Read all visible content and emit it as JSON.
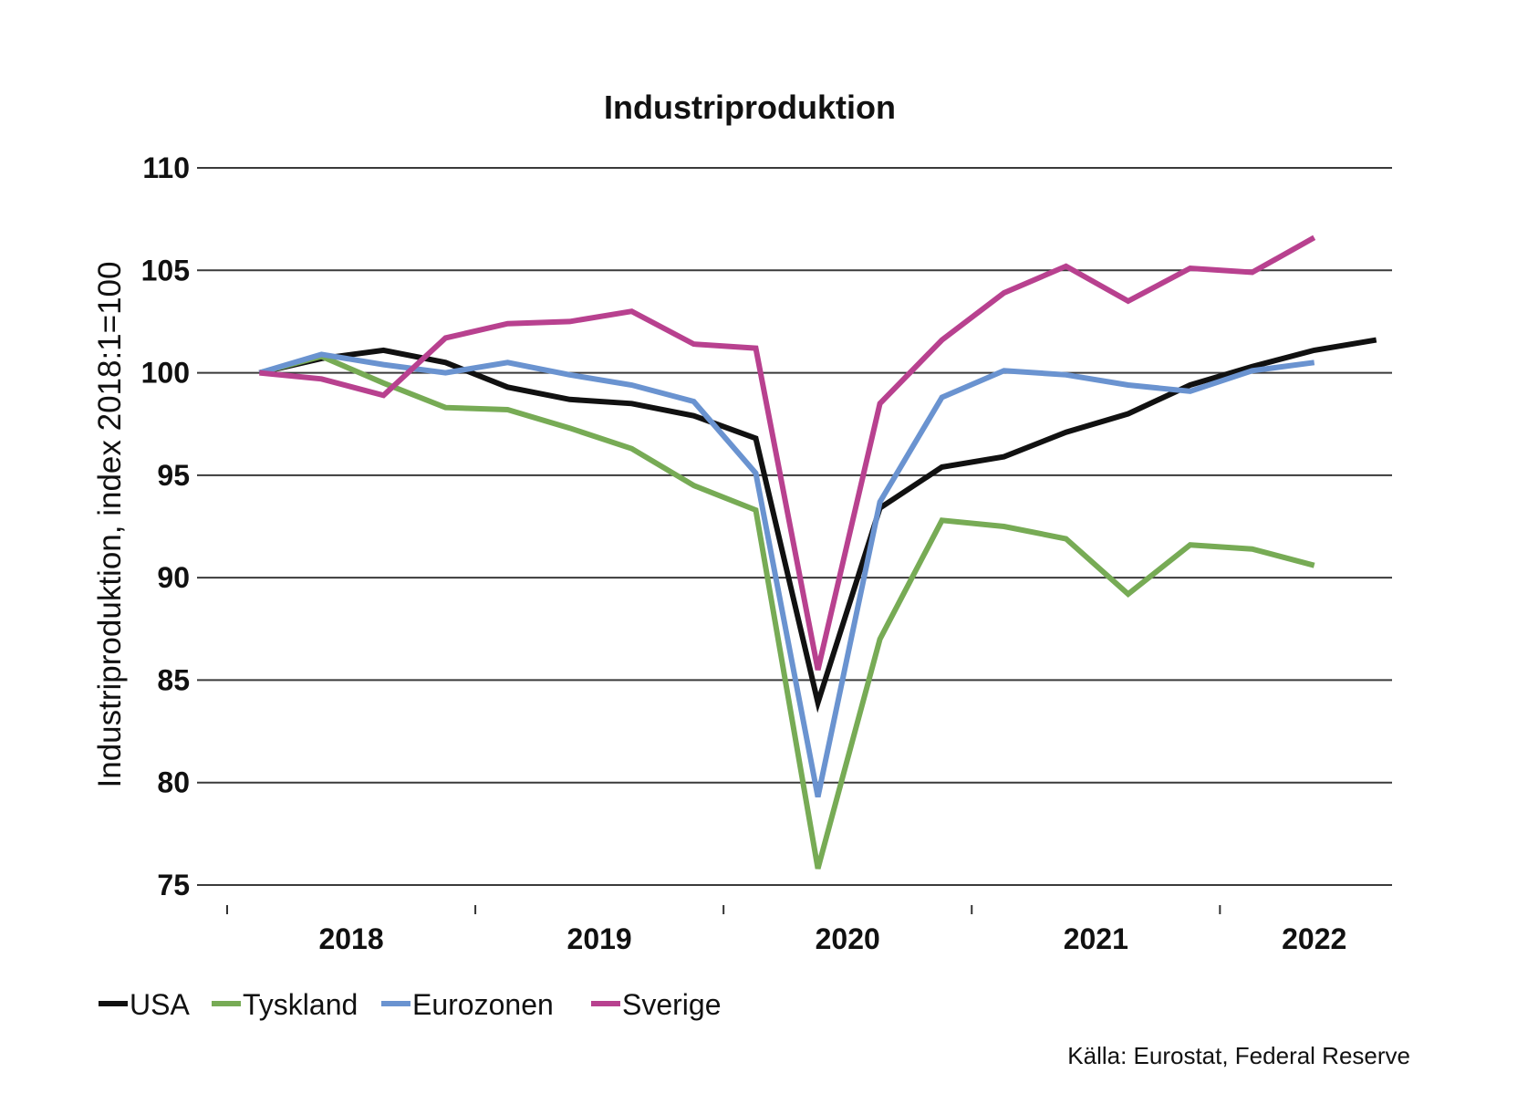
{
  "chart_data": {
    "type": "line",
    "title": "Industriproduktion",
    "ylabel": "Industriproduktion, index 2018:1=100",
    "xlabel": "",
    "source": "Källa: Eurostat, Federal Reserve",
    "ylim": [
      75,
      110
    ],
    "yticks": [
      75,
      80,
      85,
      90,
      95,
      100,
      105,
      110
    ],
    "ytick_labels": [
      "75",
      "80",
      "85",
      "90",
      "95",
      "100",
      "105",
      "110"
    ],
    "grid": true,
    "legend_position": "bottom-left",
    "xlim": [
      2017.9,
      2022.7
    ],
    "year_ticks": [
      2017.9,
      2018.9,
      2019.9,
      2020.9,
      2021.9
    ],
    "year_labels": [
      {
        "label": "2018",
        "x": 2018.4
      },
      {
        "label": "2019",
        "x": 2019.4
      },
      {
        "label": "2020",
        "x": 2020.4
      },
      {
        "label": "2021",
        "x": 2021.4
      },
      {
        "label": "2022",
        "x": 2022.28
      }
    ],
    "series": [
      {
        "name": "USA",
        "color": "#111111",
        "x": [
          2018.03,
          2018.28,
          2018.53,
          2018.78,
          2019.03,
          2019.28,
          2019.53,
          2019.78,
          2020.03,
          2020.28,
          2020.53,
          2020.78,
          2021.03,
          2021.28,
          2021.53,
          2021.78,
          2022.03,
          2022.28,
          2022.53
        ],
        "values": [
          100.0,
          100.7,
          101.1,
          100.5,
          99.3,
          98.7,
          98.5,
          97.9,
          96.8,
          83.9,
          93.4,
          95.4,
          95.9,
          97.1,
          98.0,
          99.4,
          100.3,
          101.1,
          101.6
        ]
      },
      {
        "name": "Tyskland",
        "color": "#77ab55",
        "x": [
          2018.03,
          2018.28,
          2018.53,
          2018.78,
          2019.03,
          2019.28,
          2019.53,
          2019.78,
          2020.03,
          2020.28,
          2020.53,
          2020.78,
          2021.03,
          2021.28,
          2021.53,
          2021.78,
          2022.03,
          2022.28
        ],
        "values": [
          100.0,
          100.8,
          99.5,
          98.3,
          98.2,
          97.3,
          96.3,
          94.5,
          93.3,
          75.8,
          87.0,
          92.8,
          92.5,
          91.9,
          89.2,
          91.6,
          91.4,
          90.6
        ]
      },
      {
        "name": "Eurozonen",
        "color": "#6a93d0",
        "x": [
          2018.03,
          2018.28,
          2018.53,
          2018.78,
          2019.03,
          2019.28,
          2019.53,
          2019.78,
          2020.03,
          2020.28,
          2020.53,
          2020.78,
          2021.03,
          2021.28,
          2021.53,
          2021.78,
          2022.03,
          2022.28
        ],
        "values": [
          100.0,
          100.9,
          100.4,
          100.0,
          100.5,
          99.9,
          99.4,
          98.6,
          95.1,
          79.3,
          93.7,
          98.8,
          100.1,
          99.9,
          99.4,
          99.1,
          100.1,
          100.5
        ]
      },
      {
        "name": "Sverige",
        "color": "#b8418f",
        "x": [
          2018.03,
          2018.28,
          2018.53,
          2018.78,
          2019.03,
          2019.28,
          2019.53,
          2019.78,
          2020.03,
          2020.28,
          2020.53,
          2020.78,
          2021.03,
          2021.28,
          2021.53,
          2021.78,
          2022.03,
          2022.28
        ],
        "values": [
          100.0,
          99.7,
          98.9,
          101.7,
          102.4,
          102.5,
          103.0,
          101.4,
          101.2,
          85.5,
          98.5,
          101.6,
          103.9,
          105.2,
          103.5,
          105.1,
          104.9,
          106.6
        ]
      }
    ]
  }
}
